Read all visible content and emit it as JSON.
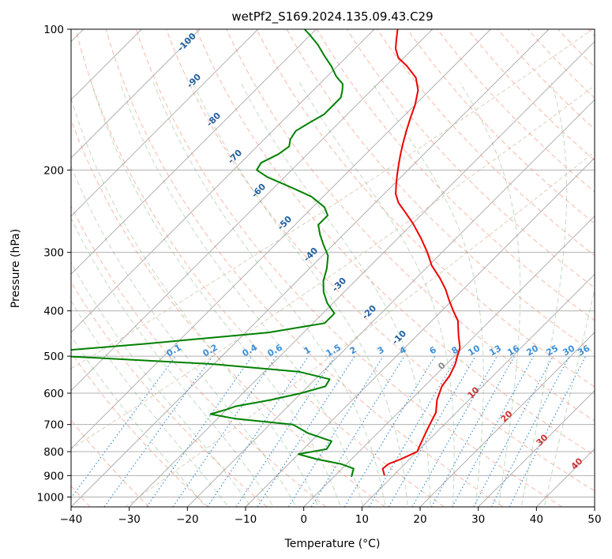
{
  "chart_data": {
    "type": "line",
    "chart_kind": "skew-t log-p diagram",
    "title": "wetPf2_S169.2024.135.09.43.C29",
    "xlabel": "Temperature (°C)",
    "ylabel": "Pressure (hPa)",
    "xlim": [
      -40,
      50
    ],
    "ylim": [
      1050,
      100
    ],
    "y_scale": "log",
    "x_ticks": [
      -40,
      -30,
      -20,
      -10,
      0,
      10,
      20,
      30,
      40,
      50
    ],
    "y_ticks": [
      100,
      200,
      300,
      400,
      500,
      600,
      700,
      800,
      900,
      1000
    ],
    "grid": true,
    "series": [
      {
        "role": "temperature",
        "color": "#ee0000",
        "points": [
          [
            8.5,
            900
          ],
          [
            7.0,
            870
          ],
          [
            7.2,
            850
          ],
          [
            8.5,
            830
          ],
          [
            10.0,
            800
          ],
          [
            9.5,
            780
          ],
          [
            8.5,
            740
          ],
          [
            7.5,
            700
          ],
          [
            6.5,
            660
          ],
          [
            4.5,
            620
          ],
          [
            3.0,
            580
          ],
          [
            2.5,
            550
          ],
          [
            1.5,
            520
          ],
          [
            0.5,
            500
          ],
          [
            -0.5,
            480
          ],
          [
            -3.0,
            450
          ],
          [
            -5.5,
            420
          ],
          [
            -8.0,
            400
          ],
          [
            -10.5,
            380
          ],
          [
            -13.0,
            360
          ],
          [
            -16.0,
            340
          ],
          [
            -19.5,
            320
          ],
          [
            -22.5,
            300
          ],
          [
            -26.0,
            280
          ],
          [
            -30.0,
            260
          ],
          [
            -33.5,
            245
          ],
          [
            -36.0,
            235
          ],
          [
            -38.0,
            225
          ],
          [
            -39.5,
            215
          ],
          [
            -41.0,
            205
          ],
          [
            -42.5,
            195
          ],
          [
            -44.0,
            185
          ],
          [
            -45.5,
            175
          ],
          [
            -47.0,
            165
          ],
          [
            -48.5,
            155
          ],
          [
            -50.0,
            145
          ],
          [
            -52.0,
            135
          ],
          [
            -54.5,
            127
          ],
          [
            -58.0,
            120
          ],
          [
            -61.0,
            115
          ],
          [
            -63.0,
            110
          ],
          [
            -64.5,
            105
          ],
          [
            -66.0,
            100
          ]
        ]
      },
      {
        "role": "dewpoint",
        "color": "#008000",
        "points": [
          [
            3.0,
            905
          ],
          [
            2.0,
            870
          ],
          [
            -1.0,
            850
          ],
          [
            -6.0,
            830
          ],
          [
            -10.0,
            810
          ],
          [
            -6.0,
            790
          ],
          [
            -6.5,
            760
          ],
          [
            -12.0,
            730
          ],
          [
            -16.0,
            700
          ],
          [
            -27.0,
            680
          ],
          [
            -32.0,
            665
          ],
          [
            -30.0,
            650
          ],
          [
            -29.0,
            640
          ],
          [
            -24.0,
            620
          ],
          [
            -20.0,
            600
          ],
          [
            -17.0,
            580
          ],
          [
            -17.5,
            560
          ],
          [
            -24.0,
            540
          ],
          [
            -40.0,
            520
          ],
          [
            -60.0,
            505
          ],
          [
            -75.0,
            495
          ],
          [
            -55.0,
            470
          ],
          [
            -36.0,
            445
          ],
          [
            -28.0,
            425
          ],
          [
            -28.0,
            405
          ],
          [
            -31.0,
            385
          ],
          [
            -33.5,
            365
          ],
          [
            -35.5,
            345
          ],
          [
            -37.0,
            325
          ],
          [
            -39.0,
            305
          ],
          [
            -41.5,
            290
          ],
          [
            -44.0,
            275
          ],
          [
            -46.0,
            262
          ],
          [
            -46.0,
            250
          ],
          [
            -48.0,
            240
          ],
          [
            -52.0,
            228
          ],
          [
            -57.0,
            218
          ],
          [
            -63.0,
            207
          ],
          [
            -66.0,
            200
          ],
          [
            -66.5,
            193
          ],
          [
            -65.0,
            185
          ],
          [
            -64.5,
            178
          ],
          [
            -65.5,
            172
          ],
          [
            -66.0,
            165
          ],
          [
            -65.0,
            158
          ],
          [
            -64.0,
            152
          ],
          [
            -64.0,
            146
          ],
          [
            -64.0,
            140
          ],
          [
            -65.0,
            135
          ],
          [
            -66.0,
            131
          ],
          [
            -68.5,
            126
          ],
          [
            -71.0,
            120
          ],
          [
            -74.0,
            114
          ],
          [
            -77.0,
            108
          ],
          [
            -80.0,
            103
          ],
          [
            -82.0,
            100
          ]
        ]
      }
    ],
    "dry_adiabat_labels": [
      "-100",
      "-90",
      "-80",
      "-70",
      "-60",
      "-50",
      "-40",
      "-30",
      "-20",
      "-10"
    ],
    "moist_adiabat_labels": [
      "0",
      "10",
      "20",
      "30",
      "40"
    ],
    "mixing_ratio_labels": [
      "0.1",
      "0.2",
      "0.4",
      "0.6",
      "1",
      "1.5",
      "2",
      "3",
      "4",
      "6",
      "8",
      "10",
      "13",
      "16",
      "20",
      "25",
      "30",
      "36"
    ]
  }
}
